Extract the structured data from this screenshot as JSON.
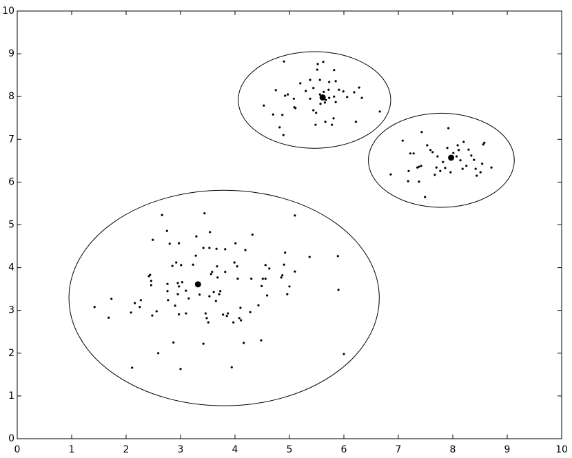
{
  "chart_data": {
    "type": "scatter",
    "xlim": [
      0,
      10
    ],
    "ylim": [
      0,
      10
    ],
    "xticks": [
      0,
      1,
      2,
      3,
      4,
      5,
      6,
      7,
      8,
      9,
      10
    ],
    "yticks": [
      0,
      1,
      2,
      3,
      4,
      5,
      6,
      7,
      8,
      9,
      10
    ],
    "grid": false,
    "series": [
      {
        "color": "#000000",
        "marker": "small",
        "x": [
          1.42,
          1.73,
          1.68,
          2.11,
          2.09,
          2.16,
          2.27,
          2.25,
          2.49,
          2.42,
          2.44,
          2.46,
          2.46,
          2.48,
          2.56,
          2.59,
          2.66,
          2.75,
          2.8,
          2.76,
          2.76,
          2.77,
          2.85,
          2.87,
          2.9,
          2.92,
          2.97,
          2.95,
          2.97,
          2.95,
          2.97,
          3.0,
          3.01,
          3.03,
          3.1,
          3.15,
          3.1,
          3.23,
          3.29,
          3.28,
          3.35,
          3.42,
          3.44,
          3.42,
          3.46,
          3.48,
          3.51,
          3.53,
          3.53,
          3.54,
          3.56,
          3.58,
          3.61,
          3.65,
          3.66,
          3.67,
          3.68,
          3.71,
          3.73,
          3.78,
          3.82,
          3.82,
          3.85,
          3.87,
          3.94,
          3.97,
          3.99,
          4.01,
          4.04,
          4.05,
          4.08,
          4.1,
          4.11,
          4.16,
          4.19,
          4.28,
          4.32,
          4.3,
          4.43,
          4.48,
          4.51,
          4.49,
          4.56,
          4.56,
          4.59,
          4.63,
          4.85,
          4.87,
          4.9,
          4.92,
          4.96,
          5.0,
          5.1,
          5.1,
          5.37,
          5.89,
          5.9,
          6.0,
          4.9,
          4.53,
          4.7,
          4.75,
          4.82,
          4.89,
          4.92,
          4.87,
          4.97,
          5.08,
          5.09,
          5.11,
          5.2,
          5.3,
          5.38,
          5.38,
          5.44,
          5.44,
          5.48,
          5.49,
          5.51,
          5.52,
          5.56,
          5.56,
          5.57,
          5.62,
          5.63,
          5.65,
          5.66,
          5.67,
          5.72,
          5.73,
          5.73,
          5.78,
          5.81,
          5.82,
          5.82,
          5.85,
          5.91,
          5.99,
          6.06,
          6.19,
          6.22,
          6.28,
          6.33,
          6.66,
          5.85,
          6.86,
          7.08,
          7.18,
          7.19,
          7.22,
          7.28,
          7.35,
          7.38,
          7.38,
          7.43,
          7.42,
          7.49,
          7.53,
          7.59,
          7.63,
          7.67,
          7.7,
          7.72,
          7.77,
          7.82,
          7.86,
          7.9,
          7.92,
          7.96,
          8.01,
          8.07,
          8.09,
          8.11,
          8.14,
          8.18,
          8.25,
          8.29,
          8.34,
          8.39,
          8.42,
          8.44,
          8.51,
          8.54,
          8.58,
          8.56,
          8.71,
          8.2
        ],
        "y": [
          3.08,
          3.27,
          2.83,
          1.66,
          2.95,
          3.17,
          3.24,
          3.08,
          4.65,
          3.8,
          3.83,
          3.69,
          3.59,
          2.88,
          2.98,
          2.0,
          5.23,
          4.86,
          4.56,
          3.62,
          3.45,
          3.24,
          4.04,
          2.25,
          3.11,
          4.12,
          4.57,
          3.64,
          3.56,
          3.38,
          2.91,
          1.63,
          4.06,
          3.66,
          3.46,
          3.28,
          2.93,
          4.07,
          4.73,
          4.28,
          3.37,
          4.46,
          5.27,
          2.22,
          2.93,
          2.82,
          2.72,
          3.33,
          4.46,
          4.83,
          3.85,
          3.9,
          3.43,
          3.22,
          4.44,
          4.03,
          3.77,
          3.38,
          3.45,
          2.9,
          3.9,
          4.43,
          2.87,
          2.93,
          1.67,
          2.72,
          4.12,
          4.57,
          4.03,
          3.74,
          2.82,
          3.06,
          2.77,
          2.24,
          4.41,
          2.96,
          4.77,
          3.74,
          3.12,
          2.3,
          3.74,
          3.57,
          4.06,
          3.74,
          3.35,
          3.98,
          3.77,
          3.82,
          4.07,
          4.35,
          3.38,
          3.56,
          5.22,
          3.91,
          4.25,
          4.27,
          3.48,
          1.98,
          8.82,
          7.79,
          7.58,
          8.15,
          7.28,
          7.1,
          8.02,
          7.57,
          8.05,
          7.95,
          7.75,
          7.73,
          8.31,
          8.13,
          8.39,
          7.95,
          7.68,
          8.2,
          7.34,
          7.62,
          8.63,
          8.76,
          8.05,
          8.39,
          7.83,
          8.81,
          8.11,
          7.86,
          7.41,
          7.92,
          8.16,
          8.34,
          7.97,
          7.34,
          7.49,
          8.0,
          8.62,
          7.87,
          8.16,
          8.12,
          7.99,
          8.1,
          7.41,
          8.21,
          7.97,
          7.65,
          8.36,
          6.18,
          6.97,
          6.02,
          6.26,
          6.67,
          6.67,
          6.34,
          6.01,
          6.36,
          7.17,
          6.38,
          5.65,
          6.86,
          6.75,
          6.7,
          6.17,
          6.34,
          6.6,
          6.26,
          6.47,
          6.33,
          6.8,
          7.26,
          6.23,
          6.68,
          6.6,
          6.86,
          6.75,
          6.51,
          6.31,
          6.38,
          6.76,
          6.62,
          6.52,
          6.31,
          6.15,
          6.23,
          6.43,
          6.92,
          6.88,
          6.34,
          6.94
        ]
      },
      {
        "color": "#000000",
        "marker": "large",
        "x": [
          3.32,
          5.61,
          7.97
        ],
        "y": [
          3.61,
          7.98,
          6.57
        ]
      }
    ],
    "ellipses": [
      {
        "cx": 3.8,
        "cy": 3.29,
        "rx": 2.85,
        "ry": 2.52
      },
      {
        "cx": 5.46,
        "cy": 7.92,
        "rx": 1.4,
        "ry": 1.13
      },
      {
        "cx": 7.79,
        "cy": 6.51,
        "rx": 1.34,
        "ry": 1.1
      }
    ]
  }
}
